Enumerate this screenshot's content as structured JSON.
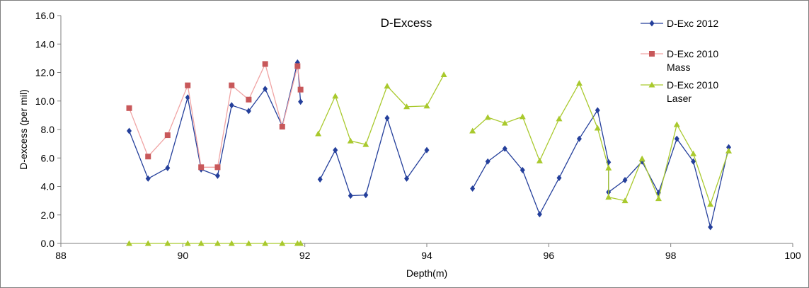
{
  "chart_data": {
    "type": "line",
    "title": "D-Excess",
    "xlabel": "Depth(m)",
    "ylabel": "D-excess (per mil)",
    "xlim": [
      88,
      100
    ],
    "ylim": [
      0,
      16
    ],
    "x_ticks": [
      "88",
      "90",
      "92",
      "94",
      "96",
      "98",
      "100"
    ],
    "y_ticks": [
      "0.0",
      "2.0",
      "4.0",
      "6.0",
      "8.0",
      "10.0",
      "12.0",
      "14.0",
      "16.0"
    ],
    "legend_position": "right",
    "grid": false,
    "series": [
      {
        "name": "D-Exc 2012",
        "color": "#243f9b",
        "marker": "diamond",
        "segments": [
          [
            [
              89.12,
              7.9
            ],
            [
              89.43,
              4.55
            ],
            [
              89.75,
              5.3
            ],
            [
              90.08,
              10.25
            ],
            [
              90.3,
              5.2
            ],
            [
              90.57,
              4.75
            ],
            [
              90.8,
              9.7
            ],
            [
              91.08,
              9.3
            ],
            [
              91.35,
              10.85
            ],
            [
              91.63,
              8.25
            ],
            [
              91.88,
              12.7
            ],
            [
              91.93,
              9.95
            ]
          ],
          [
            [
              92.25,
              4.5
            ],
            [
              92.5,
              6.55
            ],
            [
              92.75,
              3.35
            ],
            [
              93.0,
              3.4
            ],
            [
              93.35,
              8.8
            ],
            [
              93.67,
              4.55
            ],
            [
              94.0,
              6.55
            ]
          ],
          [
            [
              94.75,
              3.85
            ],
            [
              95.0,
              5.75
            ],
            [
              95.28,
              6.65
            ],
            [
              95.57,
              5.15
            ],
            [
              95.85,
              2.05
            ],
            [
              96.17,
              4.6
            ],
            [
              96.5,
              7.35
            ],
            [
              96.8,
              9.35
            ],
            [
              96.98,
              5.7
            ],
            [
              96.98,
              3.6
            ],
            [
              97.25,
              4.45
            ],
            [
              97.53,
              5.75
            ],
            [
              97.8,
              3.55
            ],
            [
              98.1,
              7.35
            ],
            [
              98.37,
              5.75
            ],
            [
              98.65,
              1.15
            ],
            [
              98.95,
              6.75
            ]
          ]
        ]
      },
      {
        "name": "D-Exc 2010\nMass",
        "color": "#c8585a",
        "line_color": "#f0a4a4",
        "marker": "square",
        "segments": [
          [
            [
              89.12,
              9.5
            ],
            [
              89.43,
              6.1
            ],
            [
              89.75,
              7.6
            ],
            [
              90.08,
              11.1
            ],
            [
              90.3,
              5.35
            ],
            [
              90.57,
              5.35
            ],
            [
              90.8,
              11.1
            ],
            [
              91.08,
              10.1
            ],
            [
              91.35,
              12.6
            ],
            [
              91.63,
              8.2
            ],
            [
              91.88,
              12.45
            ],
            [
              91.93,
              10.8
            ]
          ]
        ]
      },
      {
        "name": "D-Exc 2010\nLaser",
        "color": "#a9c92d",
        "marker": "triangle",
        "segments": [
          [
            [
              89.12,
              0.0
            ],
            [
              89.43,
              0.0
            ],
            [
              89.75,
              0.0
            ],
            [
              90.08,
              0.0
            ],
            [
              90.3,
              0.0
            ],
            [
              90.57,
              0.0
            ],
            [
              90.8,
              0.0
            ],
            [
              91.08,
              0.0
            ],
            [
              91.35,
              0.0
            ],
            [
              91.63,
              0.0
            ],
            [
              91.88,
              0.0
            ],
            [
              91.93,
              0.0
            ]
          ],
          [
            [
              92.22,
              7.7
            ],
            [
              92.5,
              10.35
            ],
            [
              92.75,
              7.2
            ],
            [
              93.0,
              6.95
            ],
            [
              93.35,
              11.05
            ],
            [
              93.67,
              9.6
            ],
            [
              94.0,
              9.65
            ],
            [
              94.28,
              11.85
            ]
          ],
          [
            [
              94.75,
              7.9
            ],
            [
              95.0,
              8.85
            ],
            [
              95.28,
              8.45
            ],
            [
              95.57,
              8.9
            ],
            [
              95.85,
              5.8
            ],
            [
              96.17,
              8.75
            ],
            [
              96.5,
              11.25
            ],
            [
              96.8,
              8.1
            ],
            [
              96.98,
              5.3
            ],
            [
              96.98,
              3.25
            ],
            [
              97.25,
              3.0
            ],
            [
              97.53,
              5.95
            ],
            [
              97.8,
              3.15
            ],
            [
              98.1,
              8.35
            ],
            [
              98.37,
              6.3
            ],
            [
              98.65,
              2.75
            ],
            [
              98.95,
              6.5
            ]
          ]
        ]
      }
    ]
  }
}
